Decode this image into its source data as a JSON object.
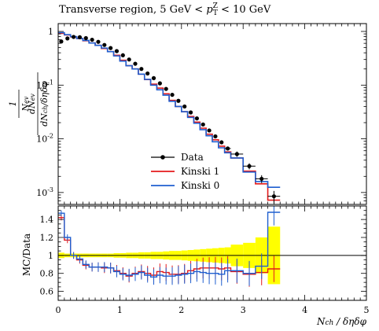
{
  "chart_data": {
    "type": "line",
    "title": "Transverse region, 5 GeV < p_T^Z < 10 GeV",
    "xlabel": "N_ch / δηδφ",
    "ylabel_main": "1/N_ev dN_ev/dN_ch/δηδφ",
    "ylabel_ratio": "MC/Data",
    "xlim": [
      0,
      5
    ],
    "ylim_main": [
      0.0006,
      1.4
    ],
    "ylim_ratio": [
      0.5,
      1.55
    ],
    "yscale_main": "log",
    "x_ticks": [
      "0",
      "1",
      "2",
      "3",
      "4",
      "5"
    ],
    "y_ticks_main": [
      "1",
      "10^-1",
      "10^-2",
      "10^-3"
    ],
    "y_ticks_ratio": [
      "0.6",
      "0.8",
      "1",
      "1.2",
      "1.4"
    ],
    "legend_position": "lower-left",
    "bin_edges": [
      0,
      0.1,
      0.2,
      0.3,
      0.4,
      0.5,
      0.6,
      0.7,
      0.8,
      0.9,
      1.0,
      1.1,
      1.2,
      1.3,
      1.4,
      1.5,
      1.6,
      1.7,
      1.8,
      1.9,
      2.0,
      2.1,
      2.2,
      2.3,
      2.4,
      2.5,
      2.6,
      2.7,
      2.8,
      3.0,
      3.2,
      3.4,
      3.6
    ],
    "series": [
      {
        "name": "Data",
        "color": "#000000",
        "style": "points",
        "x": [
          0.05,
          0.15,
          0.25,
          0.35,
          0.45,
          0.55,
          0.65,
          0.75,
          0.85,
          0.95,
          1.05,
          1.15,
          1.25,
          1.35,
          1.45,
          1.55,
          1.65,
          1.75,
          1.85,
          1.95,
          2.05,
          2.15,
          2.25,
          2.35,
          2.45,
          2.55,
          2.65,
          2.75,
          2.9,
          3.1,
          3.3,
          3.5
        ],
        "values": [
          0.65,
          0.74,
          0.79,
          0.78,
          0.75,
          0.7,
          0.64,
          0.56,
          0.49,
          0.43,
          0.36,
          0.3,
          0.25,
          0.2,
          0.165,
          0.135,
          0.108,
          0.085,
          0.066,
          0.051,
          0.04,
          0.031,
          0.024,
          0.0185,
          0.0143,
          0.0111,
          0.0086,
          0.0066,
          0.0052,
          0.0031,
          0.0018,
          0.00085
        ],
        "y_err": [
          0.015,
          0.015,
          0.015,
          0.015,
          0.015,
          0.015,
          0.015,
          0.012,
          0.01,
          0.01,
          0.008,
          0.007,
          0.006,
          0.005,
          0.004,
          0.004,
          0.003,
          0.003,
          0.002,
          0.002,
          0.0015,
          0.0012,
          0.001,
          0.0009,
          0.0008,
          0.0007,
          0.0006,
          0.0005,
          0.0006,
          0.0004,
          0.0003,
          0.00022
        ]
      },
      {
        "name": "Kinski 1",
        "color": "#e41a1c",
        "style": "step",
        "values": [
          0.92,
          0.86,
          0.79,
          0.74,
          0.67,
          0.61,
          0.55,
          0.48,
          0.42,
          0.36,
          0.29,
          0.23,
          0.2,
          0.16,
          0.127,
          0.104,
          0.088,
          0.069,
          0.052,
          0.04,
          0.032,
          0.026,
          0.0205,
          0.0158,
          0.0122,
          0.0096,
          0.0073,
          0.0057,
          0.0044,
          0.0025,
          0.00145,
          0.00072
        ],
        "ratio": [
          1.42,
          1.17,
          1.0,
          0.95,
          0.89,
          0.87,
          0.87,
          0.86,
          0.86,
          0.83,
          0.8,
          0.77,
          0.8,
          0.82,
          0.8,
          0.78,
          0.82,
          0.81,
          0.79,
          0.79,
          0.8,
          0.83,
          0.85,
          0.86,
          0.86,
          0.86,
          0.85,
          0.86,
          0.82,
          0.79,
          0.81,
          0.85
        ]
      },
      {
        "name": "Kinski 0",
        "color": "#1f5fd0",
        "style": "step",
        "values": [
          0.95,
          0.87,
          0.8,
          0.74,
          0.68,
          0.61,
          0.55,
          0.49,
          0.42,
          0.35,
          0.28,
          0.23,
          0.2,
          0.16,
          0.128,
          0.1,
          0.082,
          0.065,
          0.05,
          0.04,
          0.032,
          0.025,
          0.0195,
          0.0148,
          0.0114,
          0.0088,
          0.0068,
          0.0055,
          0.0044,
          0.0024,
          0.0016,
          0.00125
        ],
        "ratio": [
          1.47,
          1.2,
          1.0,
          0.96,
          0.9,
          0.87,
          0.87,
          0.87,
          0.86,
          0.82,
          0.79,
          0.78,
          0.79,
          0.81,
          0.78,
          0.76,
          0.78,
          0.77,
          0.77,
          0.78,
          0.79,
          0.8,
          0.82,
          0.81,
          0.8,
          0.8,
          0.79,
          0.83,
          0.83,
          0.8,
          0.88,
          1.48
        ]
      }
    ],
    "ratio_band": {
      "color": "#ffff00",
      "half_width": [
        0.03,
        0.02,
        0.02,
        0.02,
        0.02,
        0.02,
        0.02,
        0.02,
        0.02,
        0.025,
        0.025,
        0.03,
        0.03,
        0.035,
        0.035,
        0.04,
        0.04,
        0.045,
        0.05,
        0.05,
        0.055,
        0.06,
        0.065,
        0.07,
        0.075,
        0.08,
        0.085,
        0.09,
        0.12,
        0.14,
        0.2,
        0.32
      ]
    }
  }
}
